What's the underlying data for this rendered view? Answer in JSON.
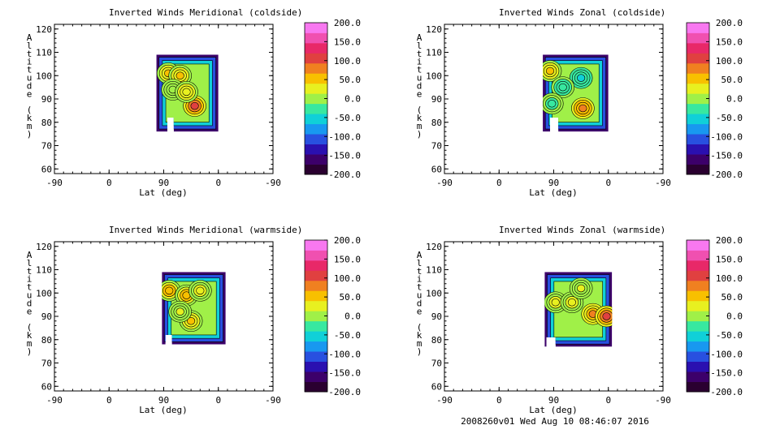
{
  "footer": "2008260v01 Wed Aug 10 08:46:07 2016",
  "colorbar": {
    "labels": [
      "200.0",
      "150.0",
      "100.0",
      "50.0",
      "0.0",
      "-50.0",
      "-100.0",
      "-150.0",
      "-200.0"
    ],
    "colors": [
      "#2a0030",
      "#3c006a",
      "#2a10b0",
      "#2850e0",
      "#1898f0",
      "#10d0d8",
      "#38e8a0",
      "#a0f048",
      "#e8f020",
      "#f8c000",
      "#f08020",
      "#e04040",
      "#e82868",
      "#f050b0",
      "#f878f0"
    ]
  },
  "chart_data": [
    {
      "type": "contour",
      "title": "Inverted Winds Meridional (coldside)",
      "xlabel": "Lat (deg)",
      "ylabel": "Altitude (km)",
      "xticks": [
        "-90",
        "0",
        "90",
        "0",
        "-90"
      ],
      "yticks": [
        "60",
        "70",
        "80",
        "90",
        "100",
        "110",
        "120"
      ],
      "ylim": [
        58,
        122
      ],
      "colorbar_range": [
        -200,
        200
      ],
      "region": {
        "x_start": 112,
        "x_end": 180,
        "y_start": 76,
        "y_end": 109,
        "notch": {
          "x_start": 124,
          "x_end": 131,
          "y_start": 76,
          "y_end": 82
        }
      },
      "blobs": [
        {
          "x": 125,
          "y": 101,
          "value": 40
        },
        {
          "x": 138,
          "y": 100,
          "value": 45
        },
        {
          "x": 130,
          "y": 94,
          "value": 10
        },
        {
          "x": 154,
          "y": 87,
          "value": 95
        },
        {
          "x": 145,
          "y": 93,
          "value": 35
        }
      ]
    },
    {
      "type": "contour",
      "title": "Inverted Winds Zonal (coldside)",
      "xlabel": "Lat (deg)",
      "ylabel": "Altitude (km)",
      "xticks": [
        "-90",
        "0",
        "90",
        "0",
        "-90"
      ],
      "yticks": [
        "60",
        "70",
        "80",
        "90",
        "100",
        "110",
        "120"
      ],
      "ylim": [
        58,
        122
      ],
      "colorbar_range": [
        -200,
        200
      ],
      "region": {
        "x_start": 108,
        "x_end": 180,
        "y_start": 76,
        "y_end": 109,
        "notch": {
          "x_start": 116,
          "x_end": 125,
          "y_start": 76,
          "y_end": 82
        }
      },
      "blobs": [
        {
          "x": 116,
          "y": 102,
          "value": 45
        },
        {
          "x": 150,
          "y": 99,
          "value": -45
        },
        {
          "x": 130,
          "y": 95,
          "value": -30
        },
        {
          "x": 152,
          "y": 86,
          "value": 90
        },
        {
          "x": 118,
          "y": 88,
          "value": -20
        }
      ]
    },
    {
      "type": "contour",
      "title": "Inverted Winds Meridional (warmside)",
      "xlabel": "Lat (deg)",
      "ylabel": "Altitude (km)",
      "xticks": [
        "-90",
        "0",
        "90",
        "0",
        "-90"
      ],
      "yticks": [
        "60",
        "70",
        "80",
        "90",
        "100",
        "110",
        "120"
      ],
      "ylim": [
        58,
        122
      ],
      "colorbar_range": [
        -200,
        200
      ],
      "region": {
        "x_start": 118,
        "x_end": 188,
        "y_start": 78,
        "y_end": 109,
        "notch": {
          "x_start": 122,
          "x_end": 129,
          "y_start": 78,
          "y_end": 82
        }
      },
      "blobs": [
        {
          "x": 126,
          "y": 101,
          "value": 60
        },
        {
          "x": 145,
          "y": 99,
          "value": 55
        },
        {
          "x": 160,
          "y": 101,
          "value": 30
        },
        {
          "x": 150,
          "y": 88,
          "value": 50
        },
        {
          "x": 138,
          "y": 92,
          "value": 15
        }
      ]
    },
    {
      "type": "contour",
      "title": "Inverted Winds Zonal (warmside)",
      "xlabel": "Lat (deg)",
      "ylabel": "Altitude (km)",
      "xticks": [
        "-90",
        "0",
        "90",
        "0",
        "-90"
      ],
      "yticks": [
        "60",
        "70",
        "80",
        "90",
        "100",
        "110",
        "120"
      ],
      "ylim": [
        58,
        122
      ],
      "colorbar_range": [
        -200,
        200
      ],
      "region": {
        "x_start": 110,
        "x_end": 184,
        "y_start": 77,
        "y_end": 109,
        "notch": {
          "x_start": 112,
          "x_end": 122,
          "y_start": 77,
          "y_end": 81
        }
      },
      "blobs": [
        {
          "x": 122,
          "y": 96,
          "value": 30
        },
        {
          "x": 140,
          "y": 96,
          "value": 30
        },
        {
          "x": 163,
          "y": 91,
          "value": 75
        },
        {
          "x": 178,
          "y": 90,
          "value": 110
        },
        {
          "x": 150,
          "y": 102,
          "value": 15
        }
      ]
    }
  ]
}
